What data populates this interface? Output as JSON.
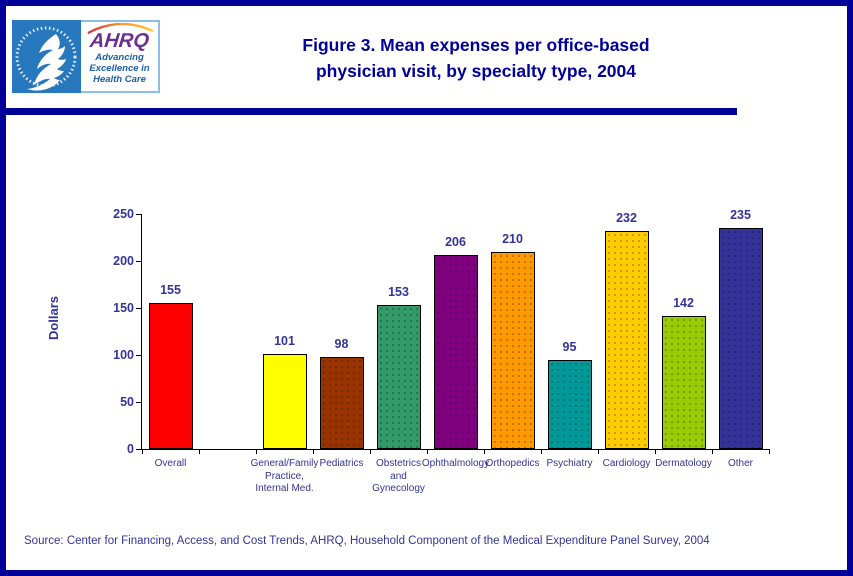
{
  "header": {
    "logo": {
      "hhs_seal_icon": "hhs-eagle-seal",
      "ahrq_swoosh_icon": "arc-swoosh",
      "ahrq_name": "AHRQ",
      "tagline_lines": [
        "Advancing",
        "Excellence in",
        "Health Care"
      ]
    },
    "title_lines": [
      "Figure 3. Mean expenses per office-based",
      "physician visit, by specialty type, 2004"
    ]
  },
  "chart_data": {
    "type": "bar",
    "title": "Figure 3. Mean expenses per office-based physician visit, by specialty type, 2004",
    "xlabel": "",
    "ylabel": "Dollars",
    "ylim": [
      0,
      250
    ],
    "yticks": [
      0,
      50,
      100,
      150,
      200,
      250
    ],
    "grid": false,
    "legend": false,
    "categories": [
      "Overall",
      "General/Family Practice, Internal Med.",
      "Pediatrics",
      "Obstetrics and Gynecology",
      "Ophthalmology",
      "Orthopedics",
      "Psychiatry",
      "Cardiology",
      "Dermatology",
      "Other"
    ],
    "category_label_lines": [
      [
        "Overall"
      ],
      [
        "General/Family",
        "Practice,",
        "Internal Med."
      ],
      [
        "Pediatrics"
      ],
      [
        "Obstetrics",
        "and",
        "Gynecology"
      ],
      [
        "Ophthalmology"
      ],
      [
        "Orthopedics"
      ],
      [
        "Psychiatry"
      ],
      [
        "Cardiology"
      ],
      [
        "Dermatology"
      ],
      [
        "Other"
      ]
    ],
    "values": [
      155,
      101,
      98,
      153,
      206,
      210,
      95,
      232,
      142,
      235
    ],
    "bar_colors": [
      "#ff0000",
      "#ffff00",
      "#993300",
      "#339966",
      "#800080",
      "#ff9900",
      "#009999",
      "#ffcc00",
      "#99cc00",
      "#333399"
    ],
    "bar_textures": [
      "solid",
      "solid",
      "dots",
      "dots",
      "dots",
      "dots",
      "dots",
      "dots",
      "dots",
      "dots"
    ],
    "x_slots": [
      0,
      2,
      3,
      4,
      5,
      6,
      7,
      8,
      9,
      10
    ],
    "total_slots": 11
  },
  "footer": {
    "source": "Source: Center for Financing, Access, and Cost Trends, AHRQ, Household Component of the Medical Expenditure Panel Survey, 2004"
  },
  "colors": {
    "page_border": "#000099",
    "title_text": "#000099",
    "divider": "#000099",
    "chart_text": "#333399",
    "axis": "#000000",
    "hhs_blue": "#2878be",
    "ahrq_purple": "#6b2e91",
    "tagline_blue": "#1b5faf"
  }
}
